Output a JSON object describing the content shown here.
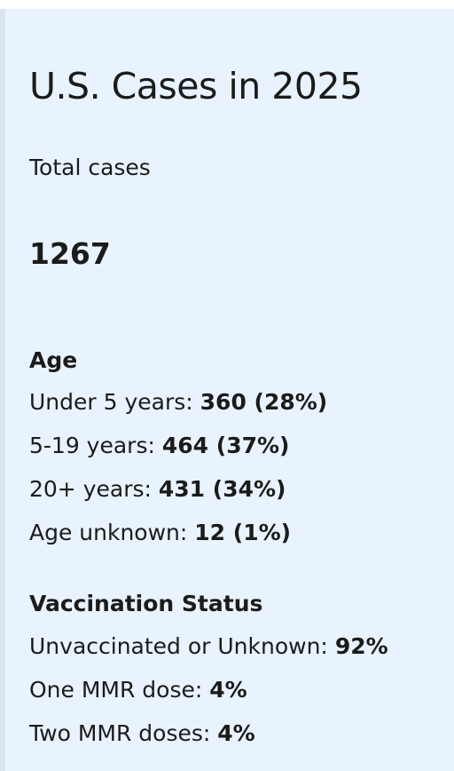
{
  "card": {
    "title": "U.S. Cases in 2025",
    "total_label": "Total cases",
    "total_value": "1267"
  },
  "age": {
    "heading": "Age",
    "rows": [
      {
        "label": "Under 5 years:",
        "value": "360 (28%)"
      },
      {
        "label": "5-19 years:",
        "value": "464 (37%)"
      },
      {
        "label": "20+ years:",
        "value": "431 (34%)"
      },
      {
        "label": "Age unknown:",
        "value": "12 (1%)"
      }
    ]
  },
  "vaccination": {
    "heading": "Vaccination Status",
    "rows": [
      {
        "label": "Unvaccinated or Unknown:",
        "value": "92%"
      },
      {
        "label": "One MMR dose:",
        "value": "4%"
      },
      {
        "label": "Two MMR doses:",
        "value": "4%"
      }
    ]
  },
  "colors": {
    "card_background": "#e9f3fd",
    "card_border": "#d9e4f0",
    "text": "#1b1b1b"
  }
}
